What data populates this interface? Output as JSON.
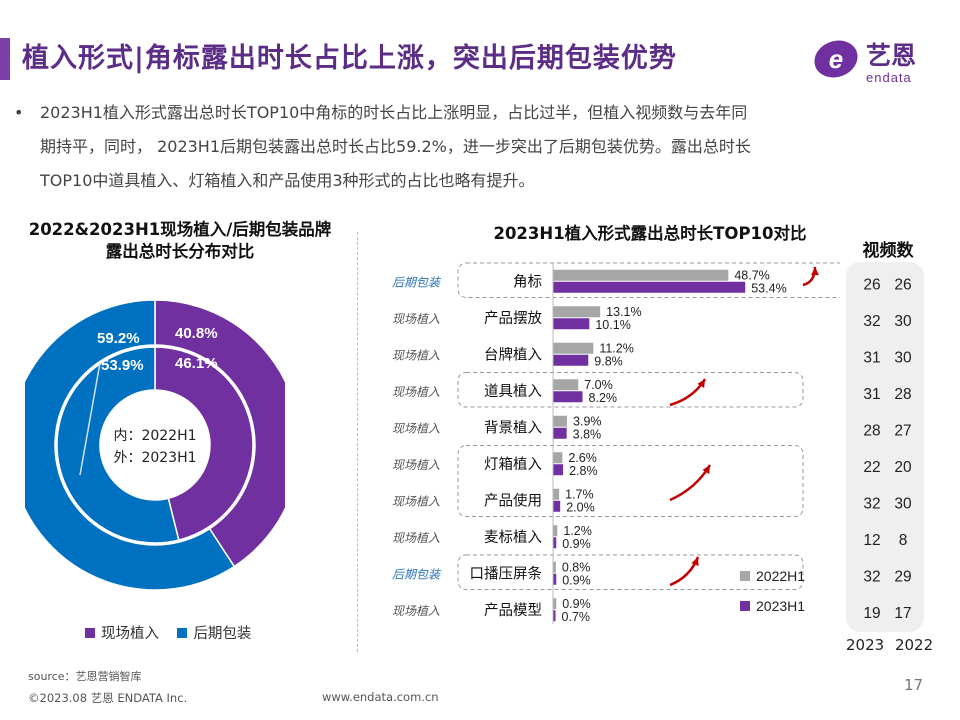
{
  "header": {
    "title": "植入形式|角标露出时长占比上涨，突出后期包装优势",
    "logo_text": "艺恩",
    "logo_sub": "endata"
  },
  "bullet": {
    "lines": [
      "2023H1植入形式露出总时长TOP10中角标的时长占比上涨明显，占比过半，但植入视频数与去年同",
      "期持平，同时， 2023H1后期包装露出总时长占比59.2%，进一步突出了后期包装优势。露出总时长",
      "TOP10中道具植入、灯箱植入和产品使用3种形式的占比也略有提升。"
    ]
  },
  "colors": {
    "purple": "#7030a0",
    "blue": "#0070c0",
    "gray": "#a6a6a6",
    "arrow": "#c00000"
  },
  "chart_data": [
    {
      "type": "pie",
      "title": "2022&2023H1现场植入/后期包装品牌\n露出总时长分布对比",
      "center_label": [
        "内：2022H1",
        "外：2023H1"
      ],
      "legend": [
        "现场植入",
        "后期包装"
      ],
      "rings": [
        {
          "ring": "outer",
          "name": "2023H1",
          "values": {
            "现场植入": 40.8,
            "后期包装": 59.2
          }
        },
        {
          "ring": "inner",
          "name": "2022H1",
          "values": {
            "现场植入": 46.1,
            "后期包装": 53.9
          }
        }
      ],
      "labels": {
        "outer_purple": "40.8%",
        "outer_blue": "59.2%",
        "inner_purple": "46.1%",
        "inner_blue": "53.9%"
      }
    },
    {
      "type": "bar",
      "orientation": "horizontal",
      "title": "2023H1植入形式露出总时长TOP10对比",
      "categories": [
        "角标",
        "产品摆放",
        "台牌植入",
        "道具植入",
        "背景植入",
        "灯箱植入",
        "产品使用",
        "麦标植入",
        "口播压屏条",
        "产品模型"
      ],
      "category_types": [
        "后期包装",
        "现场植入",
        "现场植入",
        "现场植入",
        "现场植入",
        "现场植入",
        "现场植入",
        "现场植入",
        "后期包装",
        "现场植入"
      ],
      "series": [
        {
          "name": "2022H1",
          "values": [
            48.7,
            13.1,
            11.2,
            7.0,
            3.9,
            2.6,
            1.7,
            1.2,
            0.8,
            0.9
          ]
        },
        {
          "name": "2023H1",
          "values": [
            53.4,
            10.1,
            9.8,
            8.2,
            3.8,
            2.8,
            2.0,
            0.9,
            0.9,
            0.7
          ]
        }
      ],
      "value_labels": {
        "2022H1": [
          "48.7%",
          "13.1%",
          "11.2%",
          "7.0%",
          "3.9%",
          "2.6%",
          "1.7%",
          "1.2%",
          "0.8%",
          "0.9%"
        ],
        "2023H1": [
          "53.4%",
          "10.1%",
          "9.8%",
          "8.2%",
          "3.8%",
          "2.8%",
          "2.0%",
          "0.9%",
          "0.9%",
          "0.7%"
        ]
      }
    },
    {
      "type": "table",
      "title": "视频数",
      "columns": [
        "2023",
        "2022"
      ],
      "rows": [
        [
          26,
          26
        ],
        [
          32,
          30
        ],
        [
          31,
          30
        ],
        [
          31,
          28
        ],
        [
          28,
          27
        ],
        [
          22,
          20
        ],
        [
          32,
          30
        ],
        [
          12,
          8
        ],
        [
          32,
          29
        ],
        [
          19,
          17
        ]
      ]
    }
  ],
  "footer": {
    "source": "source：艺恩营销智库",
    "copyright": "©2023.08 艺恩 ENDATA Inc.",
    "url": "www.endata.com.cn",
    "page": "17"
  }
}
